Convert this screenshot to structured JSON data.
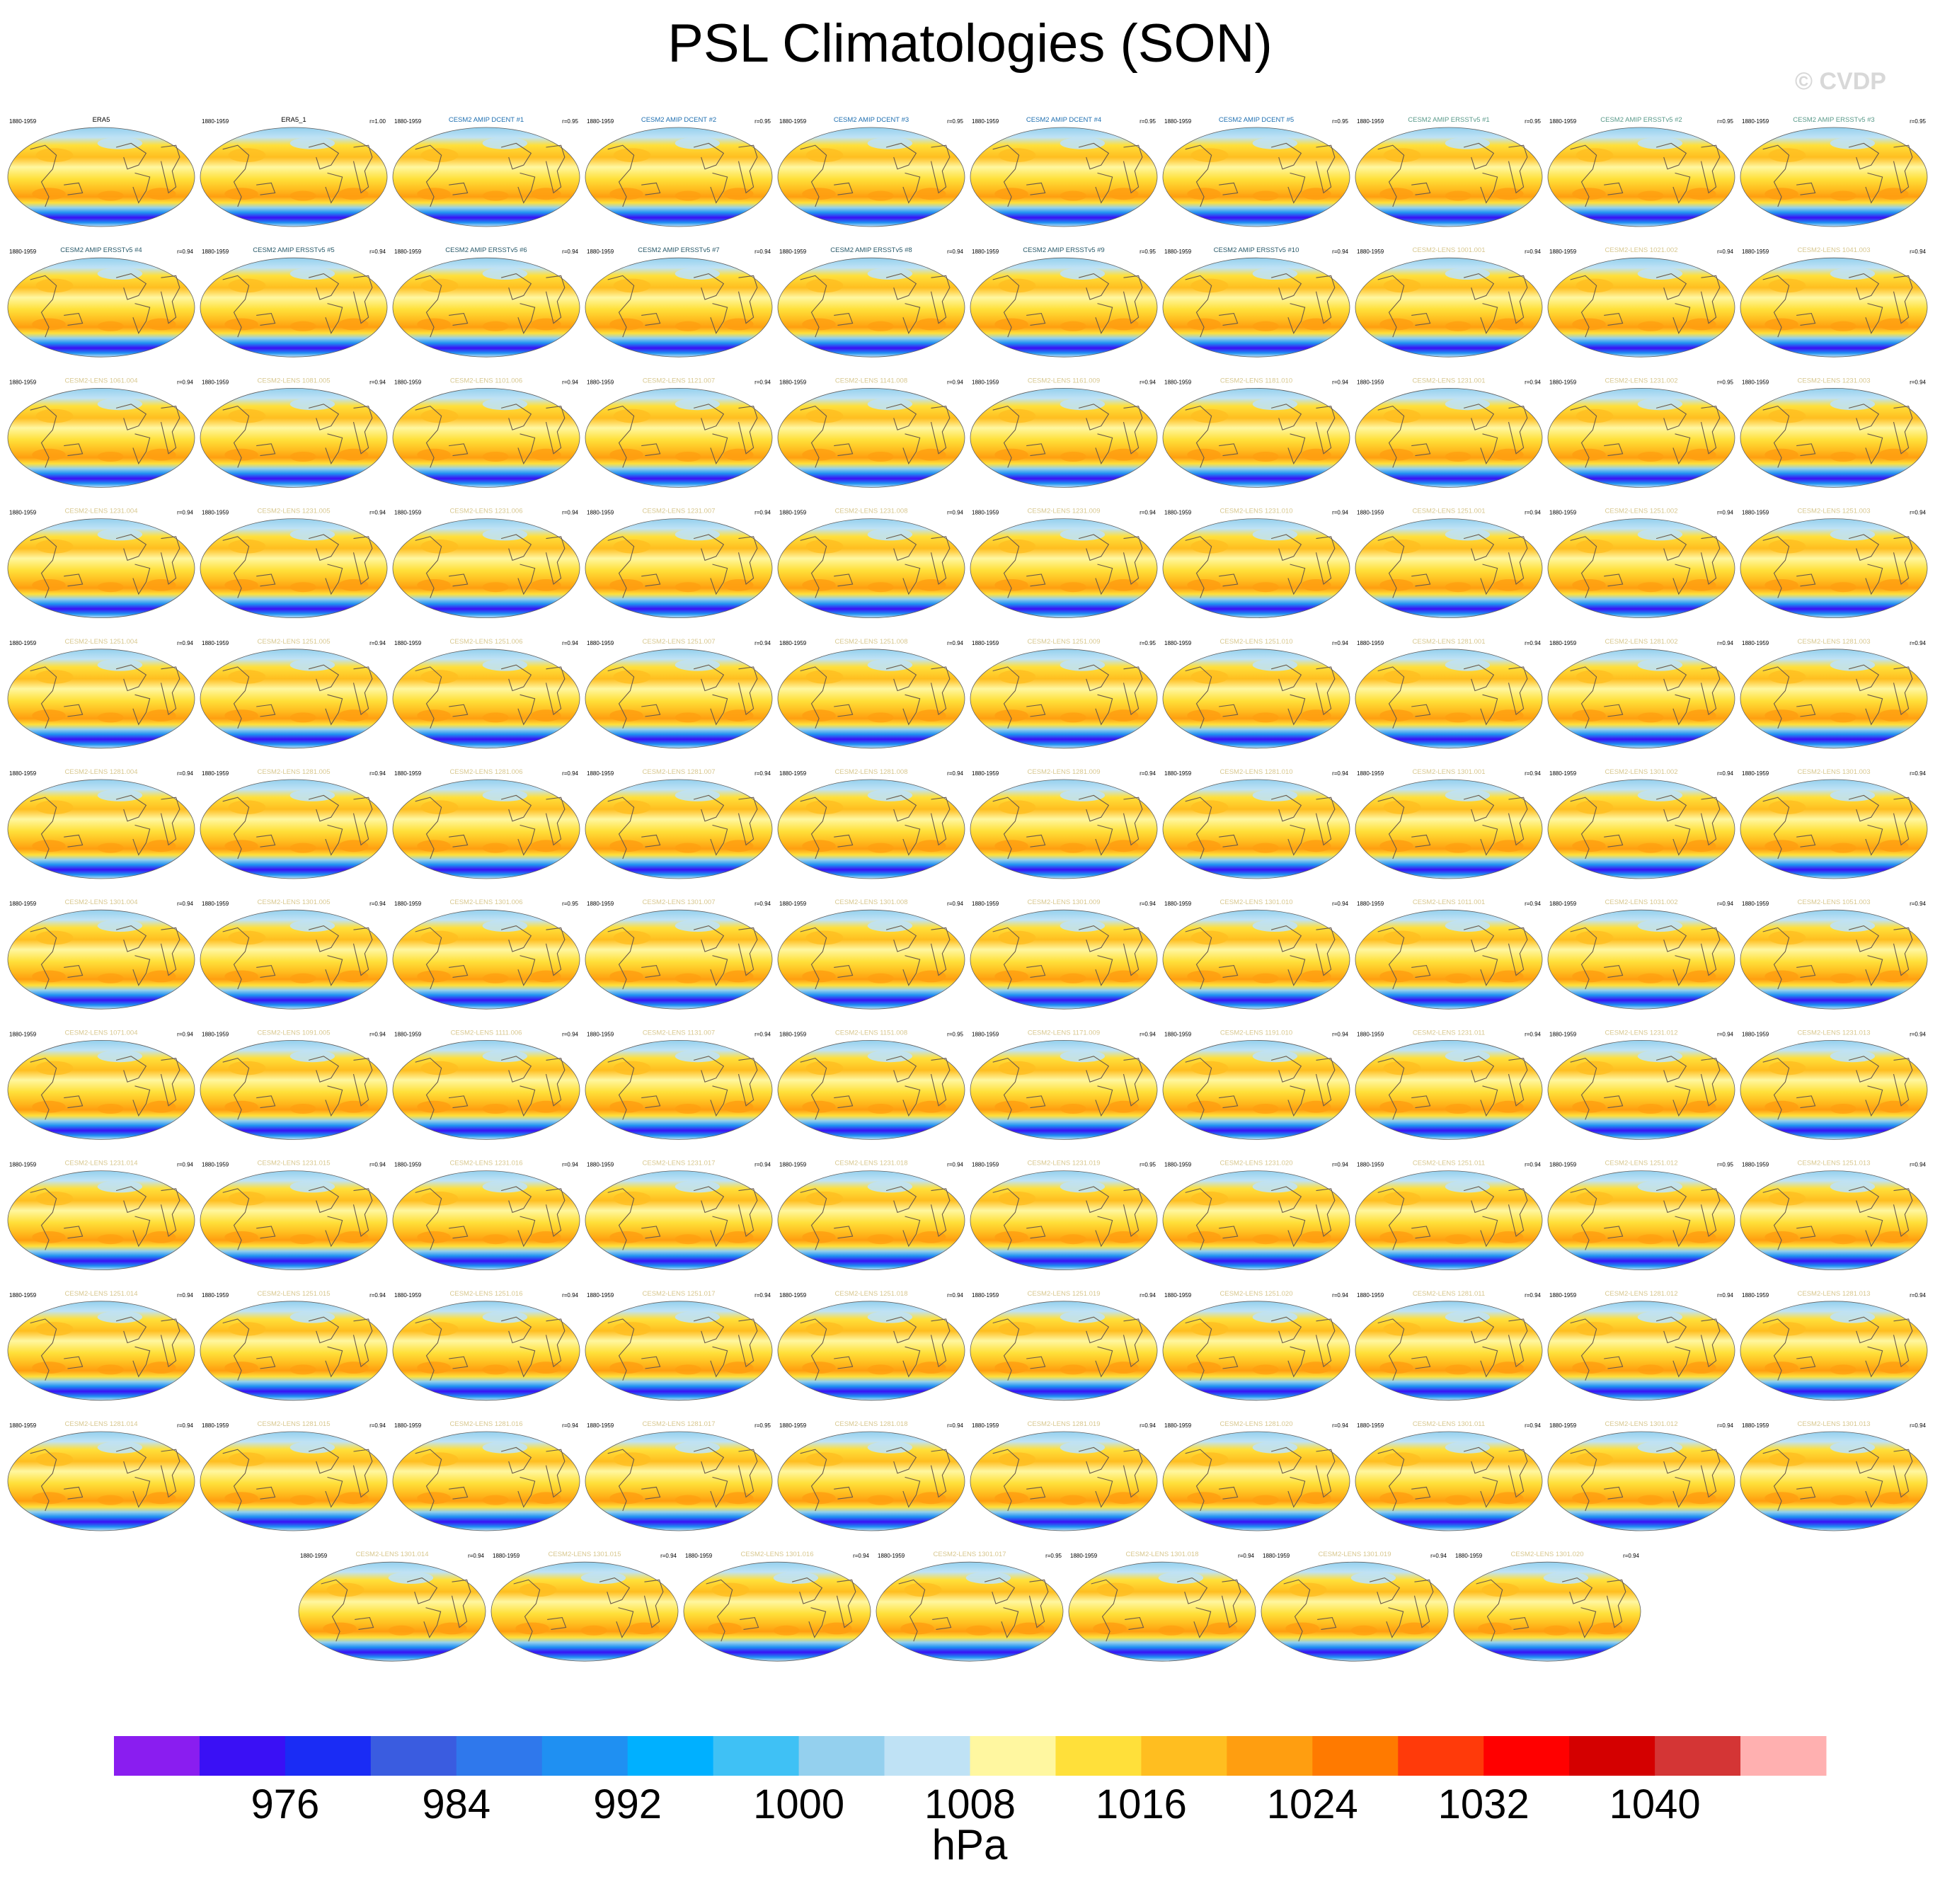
{
  "title": "PSL Climatologies (SON)",
  "watermark": "© CVDP",
  "chart_data": {
    "type": "heatmap",
    "title": "PSL Climatologies (SON)",
    "description_units": "hPa",
    "period": "1880-1959",
    "colorbar": {
      "label": "hPa",
      "tick_labels": [
        "976",
        "984",
        "992",
        "1000",
        "1008",
        "1016",
        "1024",
        "1032",
        "1040"
      ],
      "tick_values": [
        976,
        984,
        992,
        1000,
        1008,
        1016,
        1024,
        1032,
        1040
      ],
      "range": [
        968,
        1048
      ],
      "step": 4,
      "colors": [
        "#8a1df0",
        "#3a10f5",
        "#1a2cf5",
        "#3a5ce0",
        "#2f78ec",
        "#1f90f2",
        "#00b0ff",
        "#3fc1f5",
        "#94d0ee",
        "#bfe2f5",
        "#fff7a0",
        "#ffe03a",
        "#ffbe20",
        "#ff9e10",
        "#ff7a00",
        "#ff3a0a",
        "#ff0000",
        "#d40000",
        "#d43535",
        "#ffb0b0"
      ]
    },
    "panels": [
      {
        "title": "ERA5",
        "period": "1880-1959",
        "r": "",
        "title_color": "#000000"
      },
      {
        "title": "ERA5_1",
        "period": "1880-1959",
        "r": "r=1.00",
        "title_color": "#000000"
      },
      {
        "title": "CESM2 AMIP DCENT #1",
        "period": "1880-1959",
        "r": "r=0.95",
        "title_color": "#1f6fb0"
      },
      {
        "title": "CESM2 AMIP DCENT #2",
        "period": "1880-1959",
        "r": "r=0.95",
        "title_color": "#1f6fb0"
      },
      {
        "title": "CESM2 AMIP DCENT #3",
        "period": "1880-1959",
        "r": "r=0.95",
        "title_color": "#1f6fb0"
      },
      {
        "title": "CESM2 AMIP DCENT #4",
        "period": "1880-1959",
        "r": "r=0.95",
        "title_color": "#1f6fb0"
      },
      {
        "title": "CESM2 AMIP DCENT #5",
        "period": "1880-1959",
        "r": "r=0.95",
        "title_color": "#1f6fb0"
      },
      {
        "title": "CESM2 AMIP ERSSTv5 #1",
        "period": "1880-1959",
        "r": "r=0.95",
        "title_color": "#5a9a8a"
      },
      {
        "title": "CESM2 AMIP ERSSTv5 #2",
        "period": "1880-1959",
        "r": "r=0.95",
        "title_color": "#5a9a8a"
      },
      {
        "title": "CESM2 AMIP ERSSTv5 #3",
        "period": "1880-1959",
        "r": "r=0.95",
        "title_color": "#5a9a8a"
      },
      {
        "title": "CESM2 AMIP ERSSTv5 #4",
        "period": "1880-1959",
        "r": "r=0.94",
        "title_color": "#2a5a6a"
      },
      {
        "title": "CESM2 AMIP ERSSTv5 #5",
        "period": "1880-1959",
        "r": "r=0.94",
        "title_color": "#2a5a6a"
      },
      {
        "title": "CESM2 AMIP ERSSTv5 #6",
        "period": "1880-1959",
        "r": "r=0.94",
        "title_color": "#2a5a6a"
      },
      {
        "title": "CESM2 AMIP ERSSTv5 #7",
        "period": "1880-1959",
        "r": "r=0.94",
        "title_color": "#2a5a6a"
      },
      {
        "title": "CESM2 AMIP ERSSTv5 #8",
        "period": "1880-1959",
        "r": "r=0.94",
        "title_color": "#2a5a6a"
      },
      {
        "title": "CESM2 AMIP ERSSTv5 #9",
        "period": "1880-1959",
        "r": "r=0.95",
        "title_color": "#2a5a6a"
      },
      {
        "title": "CESM2 AMIP ERSSTv5 #10",
        "period": "1880-1959",
        "r": "r=0.94",
        "title_color": "#2a5a6a"
      },
      {
        "title": "CESM2-LENS 1001.001",
        "period": "1880-1959",
        "r": "r=0.94",
        "title_color": "#d8c890"
      },
      {
        "title": "CESM2-LENS 1021.002",
        "period": "1880-1959",
        "r": "r=0.94",
        "title_color": "#d8c890"
      },
      {
        "title": "CESM2-LENS 1041.003",
        "period": "1880-1959",
        "r": "r=0.94",
        "title_color": "#d8c890"
      },
      {
        "title": "CESM2-LENS 1061.004",
        "period": "1880-1959",
        "r": "r=0.94",
        "title_color": "#d8c890"
      },
      {
        "title": "CESM2-LENS 1081.005",
        "period": "1880-1959",
        "r": "r=0.94",
        "title_color": "#d8c890"
      },
      {
        "title": "CESM2-LENS 1101.006",
        "period": "1880-1959",
        "r": "r=0.94",
        "title_color": "#d8c890"
      },
      {
        "title": "CESM2-LENS 1121.007",
        "period": "1880-1959",
        "r": "r=0.94",
        "title_color": "#d8c890"
      },
      {
        "title": "CESM2-LENS 1141.008",
        "period": "1880-1959",
        "r": "r=0.94",
        "title_color": "#d8c890"
      },
      {
        "title": "CESM2-LENS 1161.009",
        "period": "1880-1959",
        "r": "r=0.94",
        "title_color": "#d8c890"
      },
      {
        "title": "CESM2-LENS 1181.010",
        "period": "1880-1959",
        "r": "r=0.94",
        "title_color": "#d8c890"
      },
      {
        "title": "CESM2-LENS 1231.001",
        "period": "1880-1959",
        "r": "r=0.94",
        "title_color": "#d8c890"
      },
      {
        "title": "CESM2-LENS 1231.002",
        "period": "1880-1959",
        "r": "r=0.95",
        "title_color": "#d8c890"
      },
      {
        "title": "CESM2-LENS 1231.003",
        "period": "1880-1959",
        "r": "r=0.94",
        "title_color": "#d8c890"
      },
      {
        "title": "CESM2-LENS 1231.004",
        "period": "1880-1959",
        "r": "r=0.94",
        "title_color": "#d8c890"
      },
      {
        "title": "CESM2-LENS 1231.005",
        "period": "1880-1959",
        "r": "r=0.94",
        "title_color": "#d8c890"
      },
      {
        "title": "CESM2-LENS 1231.006",
        "period": "1880-1959",
        "r": "r=0.94",
        "title_color": "#d8c890"
      },
      {
        "title": "CESM2-LENS 1231.007",
        "period": "1880-1959",
        "r": "r=0.94",
        "title_color": "#d8c890"
      },
      {
        "title": "CESM2-LENS 1231.008",
        "period": "1880-1959",
        "r": "r=0.94",
        "title_color": "#d8c890"
      },
      {
        "title": "CESM2-LENS 1231.009",
        "period": "1880-1959",
        "r": "r=0.94",
        "title_color": "#d8c890"
      },
      {
        "title": "CESM2-LENS 1231.010",
        "period": "1880-1959",
        "r": "r=0.94",
        "title_color": "#d8c890"
      },
      {
        "title": "CESM2-LENS 1251.001",
        "period": "1880-1959",
        "r": "r=0.94",
        "title_color": "#d8c890"
      },
      {
        "title": "CESM2-LENS 1251.002",
        "period": "1880-1959",
        "r": "r=0.94",
        "title_color": "#d8c890"
      },
      {
        "title": "CESM2-LENS 1251.003",
        "period": "1880-1959",
        "r": "r=0.94",
        "title_color": "#d8c890"
      },
      {
        "title": "CESM2-LENS 1251.004",
        "period": "1880-1959",
        "r": "r=0.94",
        "title_color": "#d8c890"
      },
      {
        "title": "CESM2-LENS 1251.005",
        "period": "1880-1959",
        "r": "r=0.94",
        "title_color": "#d8c890"
      },
      {
        "title": "CESM2-LENS 1251.006",
        "period": "1880-1959",
        "r": "r=0.94",
        "title_color": "#d8c890"
      },
      {
        "title": "CESM2-LENS 1251.007",
        "period": "1880-1959",
        "r": "r=0.94",
        "title_color": "#d8c890"
      },
      {
        "title": "CESM2-LENS 1251.008",
        "period": "1880-1959",
        "r": "r=0.94",
        "title_color": "#d8c890"
      },
      {
        "title": "CESM2-LENS 1251.009",
        "period": "1880-1959",
        "r": "r=0.95",
        "title_color": "#d8c890"
      },
      {
        "title": "CESM2-LENS 1251.010",
        "period": "1880-1959",
        "r": "r=0.94",
        "title_color": "#d8c890"
      },
      {
        "title": "CESM2-LENS 1281.001",
        "period": "1880-1959",
        "r": "r=0.94",
        "title_color": "#d8c890"
      },
      {
        "title": "CESM2-LENS 1281.002",
        "period": "1880-1959",
        "r": "r=0.94",
        "title_color": "#d8c890"
      },
      {
        "title": "CESM2-LENS 1281.003",
        "period": "1880-1959",
        "r": "r=0.94",
        "title_color": "#d8c890"
      },
      {
        "title": "CESM2-LENS 1281.004",
        "period": "1880-1959",
        "r": "r=0.94",
        "title_color": "#d8c890"
      },
      {
        "title": "CESM2-LENS 1281.005",
        "period": "1880-1959",
        "r": "r=0.94",
        "title_color": "#d8c890"
      },
      {
        "title": "CESM2-LENS 1281.006",
        "period": "1880-1959",
        "r": "r=0.94",
        "title_color": "#d8c890"
      },
      {
        "title": "CESM2-LENS 1281.007",
        "period": "1880-1959",
        "r": "r=0.94",
        "title_color": "#d8c890"
      },
      {
        "title": "CESM2-LENS 1281.008",
        "period": "1880-1959",
        "r": "r=0.94",
        "title_color": "#d8c890"
      },
      {
        "title": "CESM2-LENS 1281.009",
        "period": "1880-1959",
        "r": "r=0.94",
        "title_color": "#d8c890"
      },
      {
        "title": "CESM2-LENS 1281.010",
        "period": "1880-1959",
        "r": "r=0.94",
        "title_color": "#d8c890"
      },
      {
        "title": "CESM2-LENS 1301.001",
        "period": "1880-1959",
        "r": "r=0.94",
        "title_color": "#d8c890"
      },
      {
        "title": "CESM2-LENS 1301.002",
        "period": "1880-1959",
        "r": "r=0.94",
        "title_color": "#d8c890"
      },
      {
        "title": "CESM2-LENS 1301.003",
        "period": "1880-1959",
        "r": "r=0.94",
        "title_color": "#d8c890"
      },
      {
        "title": "CESM2-LENS 1301.004",
        "period": "1880-1959",
        "r": "r=0.94",
        "title_color": "#d8c890"
      },
      {
        "title": "CESM2-LENS 1301.005",
        "period": "1880-1959",
        "r": "r=0.94",
        "title_color": "#d8c890"
      },
      {
        "title": "CESM2-LENS 1301.006",
        "period": "1880-1959",
        "r": "r=0.95",
        "title_color": "#d8c890"
      },
      {
        "title": "CESM2-LENS 1301.007",
        "period": "1880-1959",
        "r": "r=0.94",
        "title_color": "#d8c890"
      },
      {
        "title": "CESM2-LENS 1301.008",
        "period": "1880-1959",
        "r": "r=0.94",
        "title_color": "#d8c890"
      },
      {
        "title": "CESM2-LENS 1301.009",
        "period": "1880-1959",
        "r": "r=0.94",
        "title_color": "#d8c890"
      },
      {
        "title": "CESM2-LENS 1301.010",
        "period": "1880-1959",
        "r": "r=0.94",
        "title_color": "#d8c890"
      },
      {
        "title": "CESM2-LENS 1011.001",
        "period": "1880-1959",
        "r": "r=0.94",
        "title_color": "#d8c890"
      },
      {
        "title": "CESM2-LENS 1031.002",
        "period": "1880-1959",
        "r": "r=0.94",
        "title_color": "#d8c890"
      },
      {
        "title": "CESM2-LENS 1051.003",
        "period": "1880-1959",
        "r": "r=0.94",
        "title_color": "#d8c890"
      },
      {
        "title": "CESM2-LENS 1071.004",
        "period": "1880-1959",
        "r": "r=0.94",
        "title_color": "#d8c890"
      },
      {
        "title": "CESM2-LENS 1091.005",
        "period": "1880-1959",
        "r": "r=0.94",
        "title_color": "#d8c890"
      },
      {
        "title": "CESM2-LENS 1111.006",
        "period": "1880-1959",
        "r": "r=0.94",
        "title_color": "#d8c890"
      },
      {
        "title": "CESM2-LENS 1131.007",
        "period": "1880-1959",
        "r": "r=0.94",
        "title_color": "#d8c890"
      },
      {
        "title": "CESM2-LENS 1151.008",
        "period": "1880-1959",
        "r": "r=0.95",
        "title_color": "#d8c890"
      },
      {
        "title": "CESM2-LENS 1171.009",
        "period": "1880-1959",
        "r": "r=0.94",
        "title_color": "#d8c890"
      },
      {
        "title": "CESM2-LENS 1191.010",
        "period": "1880-1959",
        "r": "r=0.94",
        "title_color": "#d8c890"
      },
      {
        "title": "CESM2-LENS 1231.011",
        "period": "1880-1959",
        "r": "r=0.94",
        "title_color": "#d8c890"
      },
      {
        "title": "CESM2-LENS 1231.012",
        "period": "1880-1959",
        "r": "r=0.94",
        "title_color": "#d8c890"
      },
      {
        "title": "CESM2-LENS 1231.013",
        "period": "1880-1959",
        "r": "r=0.94",
        "title_color": "#d8c890"
      },
      {
        "title": "CESM2-LENS 1231.014",
        "period": "1880-1959",
        "r": "r=0.94",
        "title_color": "#d8c890"
      },
      {
        "title": "CESM2-LENS 1231.015",
        "period": "1880-1959",
        "r": "r=0.94",
        "title_color": "#d8c890"
      },
      {
        "title": "CESM2-LENS 1231.016",
        "period": "1880-1959",
        "r": "r=0.94",
        "title_color": "#d8c890"
      },
      {
        "title": "CESM2-LENS 1231.017",
        "period": "1880-1959",
        "r": "r=0.94",
        "title_color": "#d8c890"
      },
      {
        "title": "CESM2-LENS 1231.018",
        "period": "1880-1959",
        "r": "r=0.94",
        "title_color": "#d8c890"
      },
      {
        "title": "CESM2-LENS 1231.019",
        "period": "1880-1959",
        "r": "r=0.95",
        "title_color": "#d8c890"
      },
      {
        "title": "CESM2-LENS 1231.020",
        "period": "1880-1959",
        "r": "r=0.94",
        "title_color": "#d8c890"
      },
      {
        "title": "CESM2-LENS 1251.011",
        "period": "1880-1959",
        "r": "r=0.94",
        "title_color": "#d8c890"
      },
      {
        "title": "CESM2-LENS 1251.012",
        "period": "1880-1959",
        "r": "r=0.95",
        "title_color": "#d8c890"
      },
      {
        "title": "CESM2-LENS 1251.013",
        "period": "1880-1959",
        "r": "r=0.94",
        "title_color": "#d8c890"
      },
      {
        "title": "CESM2-LENS 1251.014",
        "period": "1880-1959",
        "r": "r=0.94",
        "title_color": "#d8c890"
      },
      {
        "title": "CESM2-LENS 1251.015",
        "period": "1880-1959",
        "r": "r=0.94",
        "title_color": "#d8c890"
      },
      {
        "title": "CESM2-LENS 1251.016",
        "period": "1880-1959",
        "r": "r=0.94",
        "title_color": "#d8c890"
      },
      {
        "title": "CESM2-LENS 1251.017",
        "period": "1880-1959",
        "r": "r=0.94",
        "title_color": "#d8c890"
      },
      {
        "title": "CESM2-LENS 1251.018",
        "period": "1880-1959",
        "r": "r=0.94",
        "title_color": "#d8c890"
      },
      {
        "title": "CESM2-LENS 1251.019",
        "period": "1880-1959",
        "r": "r=0.94",
        "title_color": "#d8c890"
      },
      {
        "title": "CESM2-LENS 1251.020",
        "period": "1880-1959",
        "r": "r=0.94",
        "title_color": "#d8c890"
      },
      {
        "title": "CESM2-LENS 1281.011",
        "period": "1880-1959",
        "r": "r=0.94",
        "title_color": "#d8c890"
      },
      {
        "title": "CESM2-LENS 1281.012",
        "period": "1880-1959",
        "r": "r=0.94",
        "title_color": "#d8c890"
      },
      {
        "title": "CESM2-LENS 1281.013",
        "period": "1880-1959",
        "r": "r=0.94",
        "title_color": "#d8c890"
      },
      {
        "title": "CESM2-LENS 1281.014",
        "period": "1880-1959",
        "r": "r=0.94",
        "title_color": "#d8c890"
      },
      {
        "title": "CESM2-LENS 1281.015",
        "period": "1880-1959",
        "r": "r=0.94",
        "title_color": "#d8c890"
      },
      {
        "title": "CESM2-LENS 1281.016",
        "period": "1880-1959",
        "r": "r=0.94",
        "title_color": "#d8c890"
      },
      {
        "title": "CESM2-LENS 1281.017",
        "period": "1880-1959",
        "r": "r=0.95",
        "title_color": "#d8c890"
      },
      {
        "title": "CESM2-LENS 1281.018",
        "period": "1880-1959",
        "r": "r=0.94",
        "title_color": "#d8c890"
      },
      {
        "title": "CESM2-LENS 1281.019",
        "period": "1880-1959",
        "r": "r=0.94",
        "title_color": "#d8c890"
      },
      {
        "title": "CESM2-LENS 1281.020",
        "period": "1880-1959",
        "r": "r=0.94",
        "title_color": "#d8c890"
      },
      {
        "title": "CESM2-LENS 1301.011",
        "period": "1880-1959",
        "r": "r=0.94",
        "title_color": "#d8c890"
      },
      {
        "title": "CESM2-LENS 1301.012",
        "period": "1880-1959",
        "r": "r=0.94",
        "title_color": "#d8c890"
      },
      {
        "title": "CESM2-LENS 1301.013",
        "period": "1880-1959",
        "r": "r=0.94",
        "title_color": "#d8c890"
      },
      {
        "title": "CESM2-LENS 1301.014",
        "period": "1880-1959",
        "r": "r=0.94",
        "title_color": "#d8c890"
      },
      {
        "title": "CESM2-LENS 1301.015",
        "period": "1880-1959",
        "r": "r=0.94",
        "title_color": "#d8c890"
      },
      {
        "title": "CESM2-LENS 1301.016",
        "period": "1880-1959",
        "r": "r=0.94",
        "title_color": "#d8c890"
      },
      {
        "title": "CESM2-LENS 1301.017",
        "period": "1880-1959",
        "r": "r=0.95",
        "title_color": "#d8c890"
      },
      {
        "title": "CESM2-LENS 1301.018",
        "period": "1880-1959",
        "r": "r=0.94",
        "title_color": "#d8c890"
      },
      {
        "title": "CESM2-LENS 1301.019",
        "period": "1880-1959",
        "r": "r=0.94",
        "title_color": "#d8c890"
      },
      {
        "title": "CESM2-LENS 1301.020",
        "period": "1880-1959",
        "r": "r=0.94",
        "title_color": "#d8c890"
      }
    ]
  }
}
